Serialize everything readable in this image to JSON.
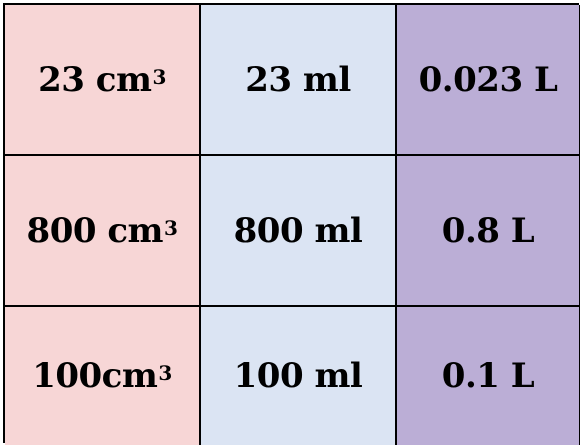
{
  "table": {
    "rows": [
      {
        "cm": "23 cm",
        "cm_sup": "3",
        "ml": "23 ml",
        "l": "0.023 L"
      },
      {
        "cm": "800 cm",
        "cm_sup": "3",
        "ml": "800 ml",
        "l": "0.8 L"
      },
      {
        "cm": "100cm",
        "cm_sup": "3",
        "ml": "100 ml",
        "l": "0.1 L"
      }
    ]
  },
  "colors": {
    "col1": "#f7d6d6",
    "col2": "#dbe4f3",
    "col3": "#bbaed6",
    "border": "#000000"
  }
}
